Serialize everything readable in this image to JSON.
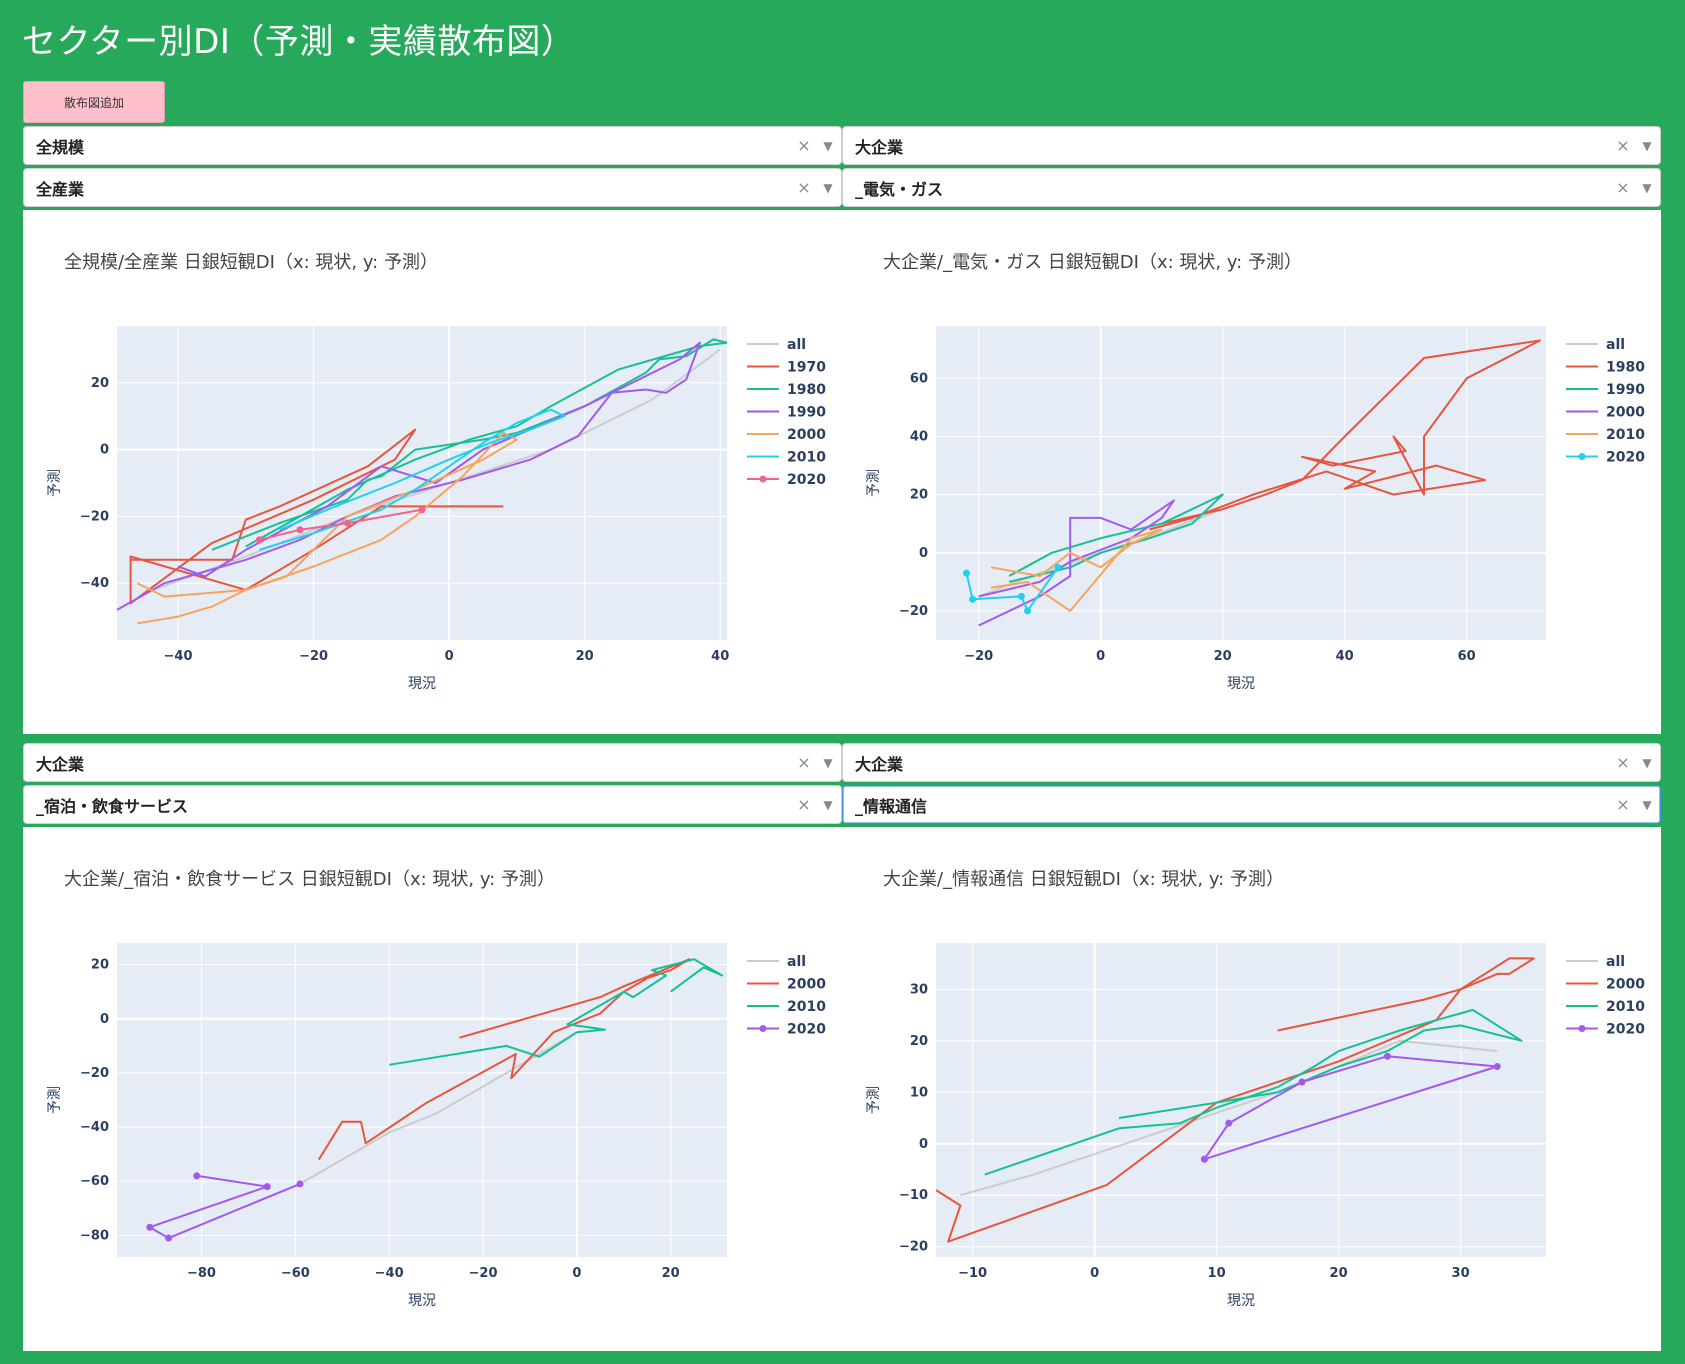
{
  "page": {
    "title": "セクター別DI（予測・実績散布図）",
    "add_button": "散布図追加"
  },
  "colors": {
    "all": "#cccccc",
    "1970": "#e8553d",
    "1980_a": "#15c194",
    "1990_a": "#a259f0",
    "2000_a": "#f8a45a",
    "2010_a": "#1ed2ef",
    "2020_a": "#f0648c",
    "plot_bg": "#e5ecf6",
    "grid": "#ffffff"
  },
  "panels": [
    {
      "size_select": "全規模",
      "industry_select": "全産業",
      "chart_title": "全規模/全産業 日銀短観DI（x: 現状, y: 予測）"
    },
    {
      "size_select": "大企業",
      "industry_select": "_電気・ガス",
      "chart_title": "大企業/_電気・ガス 日銀短観DI（x: 現状, y: 予測）"
    },
    {
      "size_select": "大企業",
      "industry_select": "_宿泊・飲食サービス",
      "chart_title": "大企業/_宿泊・飲食サービス 日銀短観DI（x: 現状, y: 予測）"
    },
    {
      "size_select": "大企業",
      "industry_select": "_情報通信",
      "chart_title": "大企業/_情報通信 日銀短観DI（x: 現状, y: 予測）"
    }
  ],
  "chart_data": [
    {
      "type": "line",
      "title": "全規模/全産業 日銀短観DI（x: 現状, y: 予測）",
      "xlabel": "現況",
      "ylabel": "予測",
      "xlim": [
        -49,
        41
      ],
      "ylim": [
        -57,
        37
      ],
      "xticks": [
        -40,
        -20,
        0,
        20,
        40
      ],
      "yticks": [
        -40,
        -20,
        0,
        20
      ],
      "legend": "right",
      "series": [
        {
          "name": "all",
          "color": "#cccccc",
          "markers": false,
          "x": [
            -45,
            -30,
            -15,
            0,
            15,
            30,
            40
          ],
          "y": [
            -43,
            -32,
            -20,
            -10,
            0,
            15,
            30
          ]
        },
        {
          "name": "1970",
          "color": "#e8553d",
          "markers": false,
          "x": [
            -47,
            -40,
            -32,
            -30,
            -25,
            -12,
            -5,
            -8,
            -20,
            -35,
            -47,
            -47,
            -30,
            -20,
            -10,
            0,
            8
          ],
          "y": [
            -33,
            -33,
            -33,
            -21,
            -17,
            -5,
            6,
            -3,
            -15,
            -28,
            -46,
            -32,
            -42,
            -30,
            -17,
            -17,
            -17
          ]
        },
        {
          "name": "1980",
          "color": "#15c194",
          "markers": false,
          "x": [
            -35,
            -25,
            -15,
            -12,
            -10,
            -5,
            5,
            10,
            20,
            29,
            31,
            35,
            39,
            41,
            37,
            25,
            15,
            10,
            3,
            -5,
            -15,
            -22,
            -30
          ],
          "y": [
            -30,
            -22,
            -15,
            -9,
            -8,
            0,
            3,
            5,
            13,
            23,
            27,
            28,
            33,
            32,
            31,
            24,
            13,
            7,
            3,
            -3,
            -12,
            -20,
            -29
          ]
        },
        {
          "name": "1990",
          "color": "#a259f0",
          "markers": false,
          "x": [
            -49,
            -42,
            -30,
            -22,
            -15,
            -8,
            2,
            12,
            19,
            24,
            29,
            32,
            35,
            37,
            34,
            20,
            5,
            -2,
            -10,
            -18,
            -30,
            -36,
            -40
          ],
          "y": [
            -48,
            -40,
            -33,
            -27,
            -20,
            -14,
            -9,
            -3,
            4,
            17,
            18,
            17,
            21,
            32,
            27,
            13,
            0,
            -10,
            -5,
            -17,
            -30,
            -38,
            -35
          ]
        },
        {
          "name": "2000",
          "color": "#f8a45a",
          "markers": false,
          "x": [
            -46,
            -40,
            -35,
            -30,
            -20,
            -10,
            -5,
            2,
            8,
            10,
            5,
            -5,
            -15,
            -24,
            -30,
            -42,
            -46
          ],
          "y": [
            -52,
            -50,
            -47,
            -42,
            -35,
            -27,
            -20,
            -8,
            5,
            3,
            -3,
            -12,
            -20,
            -38,
            -42,
            -44,
            -40
          ]
        },
        {
          "name": "2010",
          "color": "#1ed2ef",
          "markers": false,
          "x": [
            -28,
            -20,
            -10,
            -5,
            0,
            5,
            10,
            15,
            17,
            12,
            6,
            0,
            -8,
            -18,
            -25
          ],
          "y": [
            -30,
            -25,
            -18,
            -12,
            -5,
            2,
            8,
            12,
            10,
            6,
            2,
            -3,
            -10,
            -18,
            -24
          ]
        },
        {
          "name": "2020",
          "color": "#f0648c",
          "markers": true,
          "x": [
            -28,
            -22,
            -15,
            -4
          ],
          "y": [
            -27,
            -24,
            -22,
            -18
          ]
        }
      ]
    },
    {
      "type": "line",
      "title": "大企業/_電気・ガス 日銀短観DI（x: 現状, y: 予測）",
      "xlabel": "現況",
      "ylabel": "予測",
      "xlim": [
        -27,
        73
      ],
      "ylim": [
        -30,
        78
      ],
      "xticks": [
        -20,
        0,
        20,
        40,
        60
      ],
      "yticks": [
        -20,
        0,
        20,
        40,
        60
      ],
      "legend": "right",
      "series": [
        {
          "name": "all",
          "color": "#cccccc",
          "markers": false,
          "x": [
            -20,
            -10,
            0,
            10,
            20
          ],
          "y": [
            -15,
            -7,
            0,
            7,
            15
          ]
        },
        {
          "name": "1980",
          "color": "#e8553d",
          "markers": false,
          "x": [
            10,
            20,
            27,
            33,
            40,
            53,
            72,
            60,
            53,
            53,
            48,
            50,
            38,
            33,
            45,
            40,
            55,
            63,
            48,
            37,
            25,
            15,
            8
          ],
          "y": [
            10,
            15,
            20,
            25,
            40,
            67,
            73,
            60,
            40,
            20,
            40,
            35,
            30,
            33,
            28,
            22,
            30,
            25,
            20,
            28,
            20,
            12,
            8
          ]
        },
        {
          "name": "1990",
          "color": "#15c194",
          "markers": false,
          "x": [
            -15,
            -5,
            0,
            8,
            15,
            20,
            10,
            0,
            -8,
            -15
          ],
          "y": [
            -10,
            -5,
            0,
            5,
            10,
            20,
            10,
            5,
            0,
            -8
          ]
        },
        {
          "name": "2000",
          "color": "#a259f0",
          "markers": false,
          "x": [
            -20,
            -10,
            -5,
            -5,
            0,
            5,
            12,
            10,
            5,
            -5,
            -10,
            -20
          ],
          "y": [
            -25,
            -15,
            -8,
            12,
            12,
            8,
            18,
            12,
            5,
            -3,
            -10,
            -15
          ]
        },
        {
          "name": "2010",
          "color": "#f8a45a",
          "markers": false,
          "x": [
            -18,
            -10,
            -5,
            0,
            5,
            10,
            5,
            -5,
            -12,
            -18
          ],
          "y": [
            -5,
            -8,
            0,
            -5,
            3,
            8,
            5,
            -20,
            -10,
            -12
          ]
        },
        {
          "name": "2020",
          "color": "#1ed2ef",
          "markers": true,
          "x": [
            -22,
            -21,
            -13,
            -12,
            -7
          ],
          "y": [
            -7,
            -16,
            -15,
            -20,
            -5
          ]
        }
      ]
    },
    {
      "type": "line",
      "title": "大企業/_宿泊・飲食サービス 日銀短観DI（x: 現状, y: 予測）",
      "xlabel": "現況",
      "ylabel": "予測",
      "xlim": [
        -98,
        32
      ],
      "ylim": [
        -88,
        28
      ],
      "xticks": [
        -80,
        -60,
        -40,
        -20,
        0,
        20
      ],
      "yticks": [
        -80,
        -60,
        -40,
        -20,
        0,
        20
      ],
      "legend": "right",
      "series": [
        {
          "name": "all",
          "color": "#cccccc",
          "markers": false,
          "x": [
            -59,
            -50,
            -40,
            -30,
            -20,
            -10,
            0
          ],
          "y": [
            -61,
            -52,
            -42,
            -35,
            -25,
            -15,
            -5
          ]
        },
        {
          "name": "2000",
          "color": "#e8553d",
          "markers": false,
          "x": [
            -55,
            -50,
            -46,
            -45,
            -32,
            -13,
            -14,
            -5,
            5,
            10,
            15,
            20,
            24,
            10,
            5,
            -25
          ],
          "y": [
            -52,
            -38,
            -38,
            -46,
            -31,
            -13,
            -22,
            -5,
            2,
            10,
            15,
            18,
            22,
            12,
            8,
            -7
          ]
        },
        {
          "name": "2010",
          "color": "#15c194",
          "markers": false,
          "x": [
            -40,
            -15,
            -8,
            0,
            6,
            -2,
            5,
            10,
            12,
            19,
            16,
            25,
            29,
            31,
            27,
            20
          ],
          "y": [
            -17,
            -10,
            -14,
            -5,
            -4,
            -2,
            5,
            10,
            8,
            16,
            18,
            22,
            18,
            16,
            19,
            10
          ]
        },
        {
          "name": "2020",
          "color": "#a259f0",
          "markers": true,
          "x": [
            -81,
            -66,
            -91,
            -87,
            -59
          ],
          "y": [
            -58,
            -62,
            -77,
            -81,
            -61
          ]
        }
      ]
    },
    {
      "type": "line",
      "title": "大企業/_情報通信 日銀短観DI（x: 現状, y: 予測）",
      "xlabel": "現況",
      "ylabel": "予測",
      "xlim": [
        -13,
        37
      ],
      "ylim": [
        -22,
        39
      ],
      "xticks": [
        -10,
        0,
        10,
        20,
        30
      ],
      "yticks": [
        -20,
        -10,
        0,
        10,
        20,
        30
      ],
      "legend": "right",
      "series": [
        {
          "name": "all",
          "color": "#cccccc",
          "markers": false,
          "x": [
            -11,
            -5,
            5,
            15,
            25,
            33
          ],
          "y": [
            -10,
            -6,
            2,
            10,
            20,
            18
          ]
        },
        {
          "name": "2000",
          "color": "#e8553d",
          "markers": false,
          "x": [
            -13,
            -11,
            -12,
            1,
            10,
            20,
            28,
            30,
            34,
            36,
            34,
            33,
            30,
            27,
            15
          ],
          "y": [
            -9,
            -12,
            -19,
            -8,
            8,
            16,
            24,
            30,
            36,
            36,
            33,
            33,
            30,
            28,
            22
          ]
        },
        {
          "name": "2010",
          "color": "#15c194",
          "markers": false,
          "x": [
            -9,
            2,
            7,
            10,
            15,
            18,
            20,
            25,
            28,
            31,
            35,
            30,
            27,
            24,
            20,
            15,
            10,
            2
          ],
          "y": [
            -6,
            3,
            4,
            7,
            11,
            15,
            18,
            22,
            24,
            26,
            20,
            23,
            22,
            18,
            15,
            10,
            8,
            5
          ]
        },
        {
          "name": "2020",
          "color": "#a259f0",
          "markers": true,
          "x": [
            9,
            11,
            17,
            24,
            33,
            9
          ],
          "y": [
            -3,
            4,
            12,
            17,
            15,
            -3
          ]
        }
      ]
    }
  ]
}
